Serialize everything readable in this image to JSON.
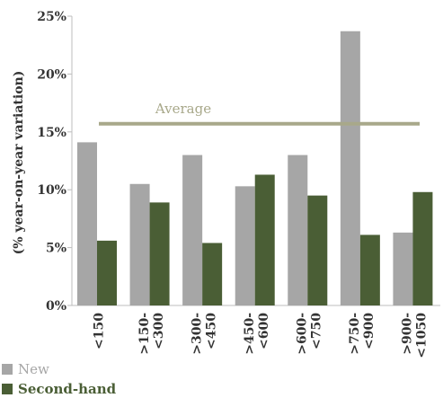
{
  "chart_data": {
    "type": "bar",
    "title": "",
    "xlabel": "",
    "ylabel": "(% year-on-year variation)",
    "ylim": [
      0,
      25
    ],
    "yticks": [
      "0%",
      "5%",
      "10%",
      "15%",
      "20%",
      "25%"
    ],
    "categories": [
      "<150",
      ">150-<300",
      ">300-<450",
      ">450-<600",
      ">600-<750",
      ">750-<900",
      ">900-<1050"
    ],
    "category_lines": [
      [
        "<150"
      ],
      [
        ">150-",
        "<300"
      ],
      [
        ">300-",
        "<450"
      ],
      [
        ">450-",
        "<600"
      ],
      [
        ">600-",
        "<750"
      ],
      [
        ">750-",
        "<900"
      ],
      [
        ">900-",
        "<1050"
      ]
    ],
    "series": [
      {
        "name": "New",
        "color": "#a6a6a6",
        "values": [
          14.1,
          10.5,
          13.0,
          10.3,
          13.0,
          23.7,
          6.3
        ]
      },
      {
        "name": "Second-hand",
        "color": "#4a5e35",
        "values": [
          5.6,
          8.9,
          5.4,
          11.3,
          9.5,
          6.1,
          9.8
        ]
      }
    ],
    "average": {
      "label": "Average",
      "value": 15.7,
      "color": "#a8a88a"
    },
    "legend_position": "bottom-left",
    "grid": false
  }
}
